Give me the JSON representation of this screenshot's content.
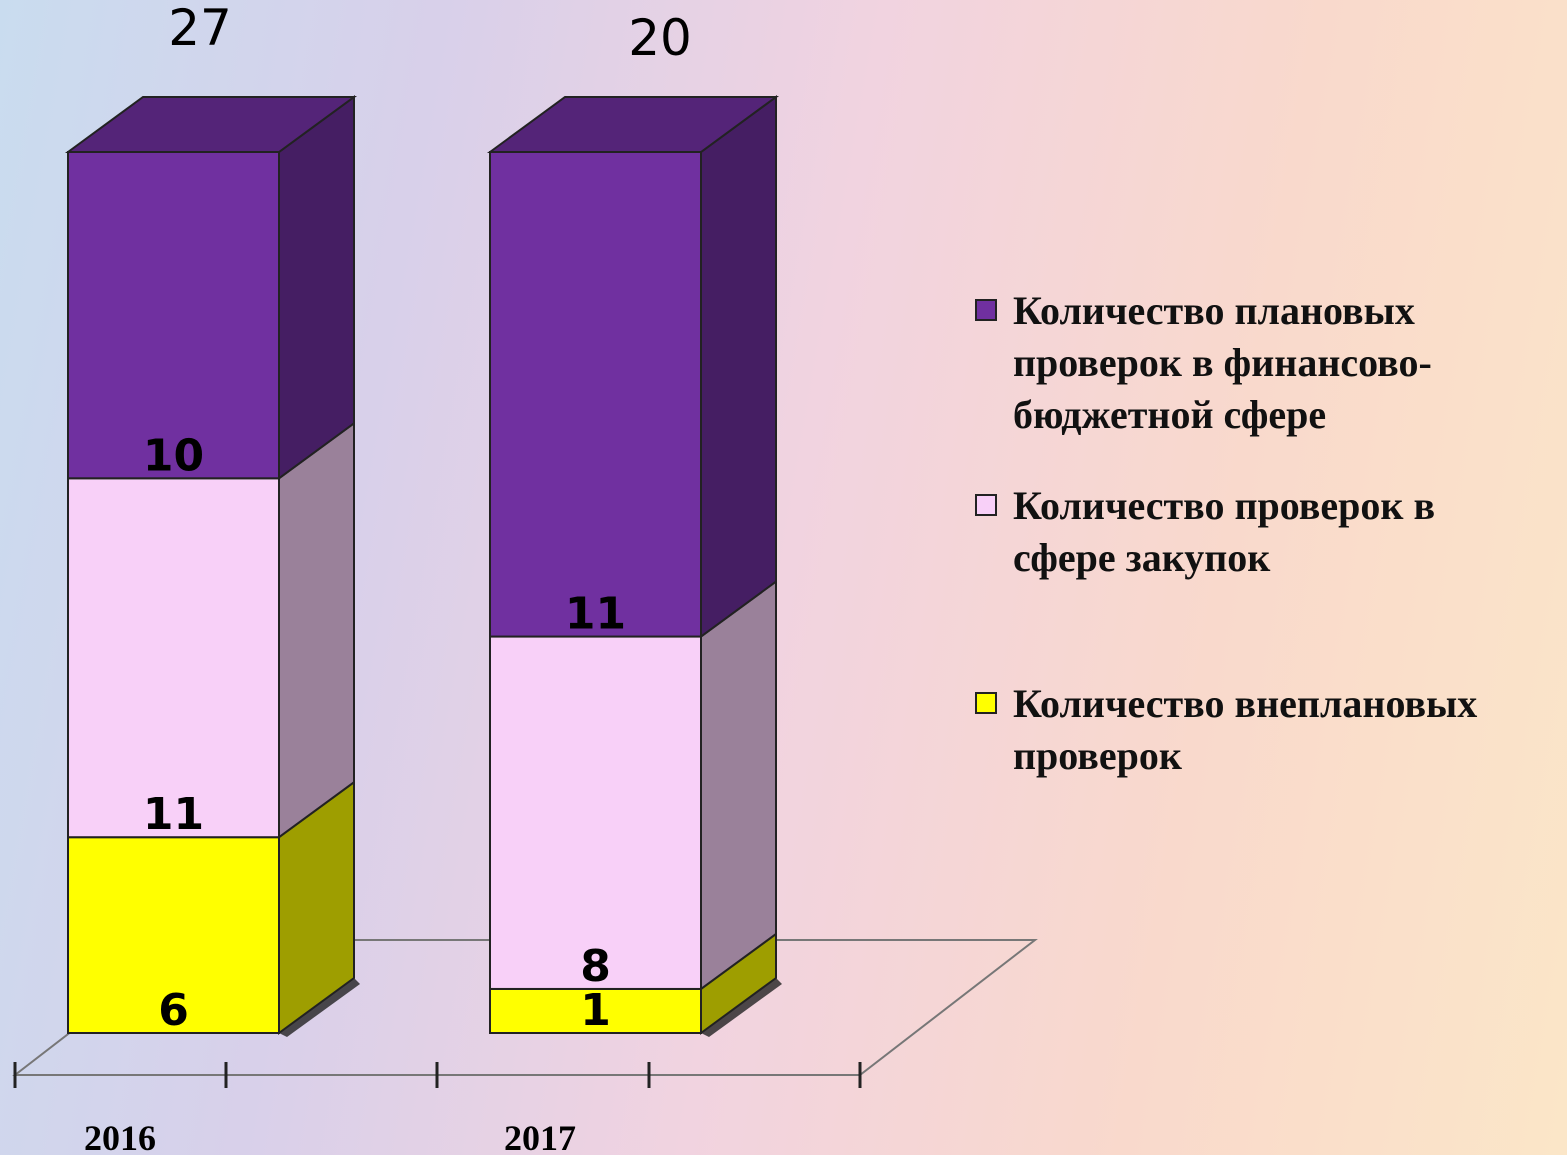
{
  "chart_data": {
    "type": "bar3d",
    "stacking": "percent",
    "categories": [
      "2016",
      "2017"
    ],
    "totals": [
      27,
      20
    ],
    "series": [
      {
        "name": "Количество внеплановых проверок",
        "color": "#ffff00",
        "values": [
          6,
          1
        ]
      },
      {
        "name": "Количество проверок в сфере закупок",
        "color": "#f8d0f8",
        "values": [
          11,
          8
        ]
      },
      {
        "name": "Количество плановых проверок в финансово-бюджетной сфере",
        "color": "#7030a0",
        "values": [
          10,
          11
        ]
      }
    ]
  }
}
